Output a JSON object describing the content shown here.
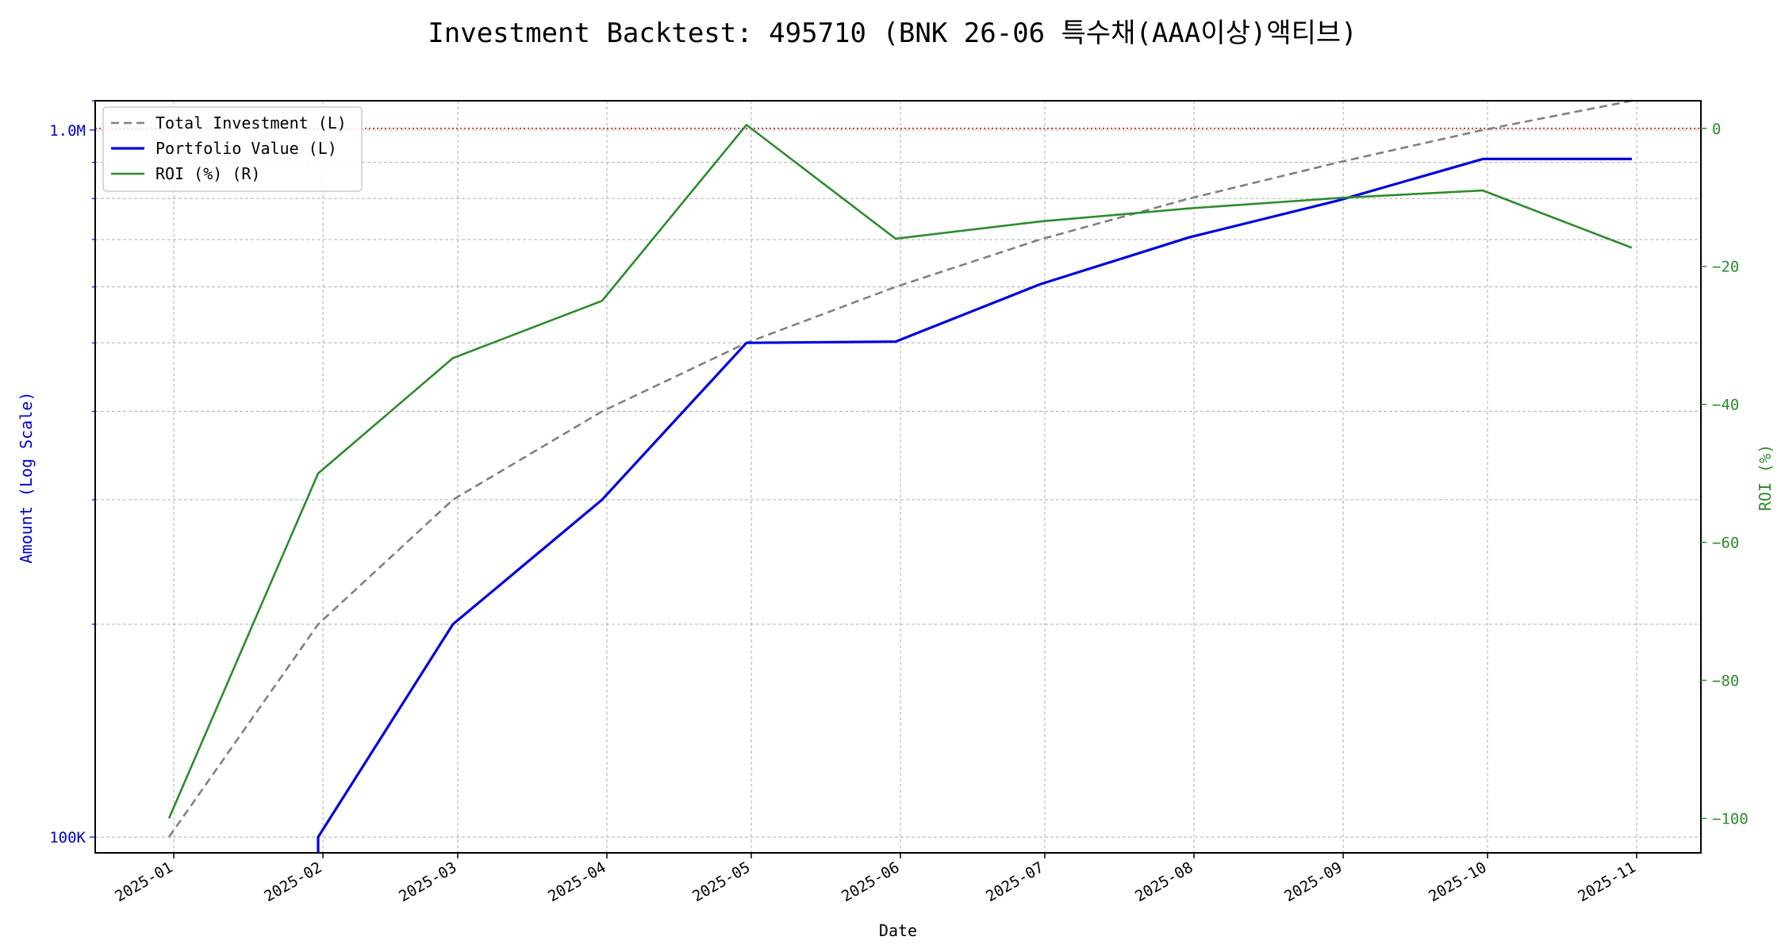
{
  "chart_data": {
    "type": "line",
    "title": "Investment Backtest: 495710 (BNK 26-06 특수채(AAA이상)액티브)",
    "xlabel": "Date",
    "ylabel_left": "Amount (Log Scale)",
    "ylabel_right": "ROI (%)",
    "left_scale": "log",
    "left_ylim": [
      95000,
      1100000
    ],
    "left_ticks": [
      {
        "value": 100000,
        "label": "100K"
      },
      {
        "value": 1000000,
        "label": "1.0M"
      }
    ],
    "right_ylim": [
      -105,
      4
    ],
    "right_ticks": [
      {
        "value": 0,
        "label": "0"
      },
      {
        "value": -20,
        "label": "−20"
      },
      {
        "value": -40,
        "label": "−40"
      },
      {
        "value": -60,
        "label": "−60"
      },
      {
        "value": -80,
        "label": "−80"
      },
      {
        "value": -100,
        "label": "−100"
      }
    ],
    "x_ticks": [
      "2025-01",
      "2025-02",
      "2025-03",
      "2025-04",
      "2025-05",
      "2025-06",
      "2025-07",
      "2025-08",
      "2025-09",
      "2025-10",
      "2025-11"
    ],
    "x": [
      "2024-12-31",
      "2025-01-31",
      "2025-02-28",
      "2025-03-31",
      "2025-04-30",
      "2025-05-31",
      "2025-06-30",
      "2025-07-31",
      "2025-08-31",
      "2025-09-30",
      "2025-10-31"
    ],
    "series": [
      {
        "name": "Total Investment (L)",
        "axis": "left",
        "color": "#808080",
        "dash": true,
        "values": [
          100000,
          200000,
          300000,
          400000,
          500000,
          600000,
          700000,
          800000,
          900000,
          1000000,
          1100000
        ]
      },
      {
        "name": "Portfolio Value (L)",
        "axis": "left",
        "color": "#0000dd",
        "dash": false,
        "values": [
          null,
          100000,
          200000,
          300000,
          500000,
          502000,
          605000,
          705000,
          795000,
          910000,
          910000
        ]
      },
      {
        "name": "ROI (%) (R)",
        "axis": "right",
        "color": "#2e8b2e",
        "dash": false,
        "values": [
          -100,
          -50,
          -33.3,
          -25,
          0.5,
          -16,
          -13.5,
          -11.6,
          -10.1,
          -9,
          -17.3
        ]
      }
    ],
    "zero_reference_line": {
      "axis": "right",
      "value": 0,
      "color": "#dd0000",
      "style": "dotted"
    },
    "grid": true,
    "legend_position": "top-left"
  }
}
